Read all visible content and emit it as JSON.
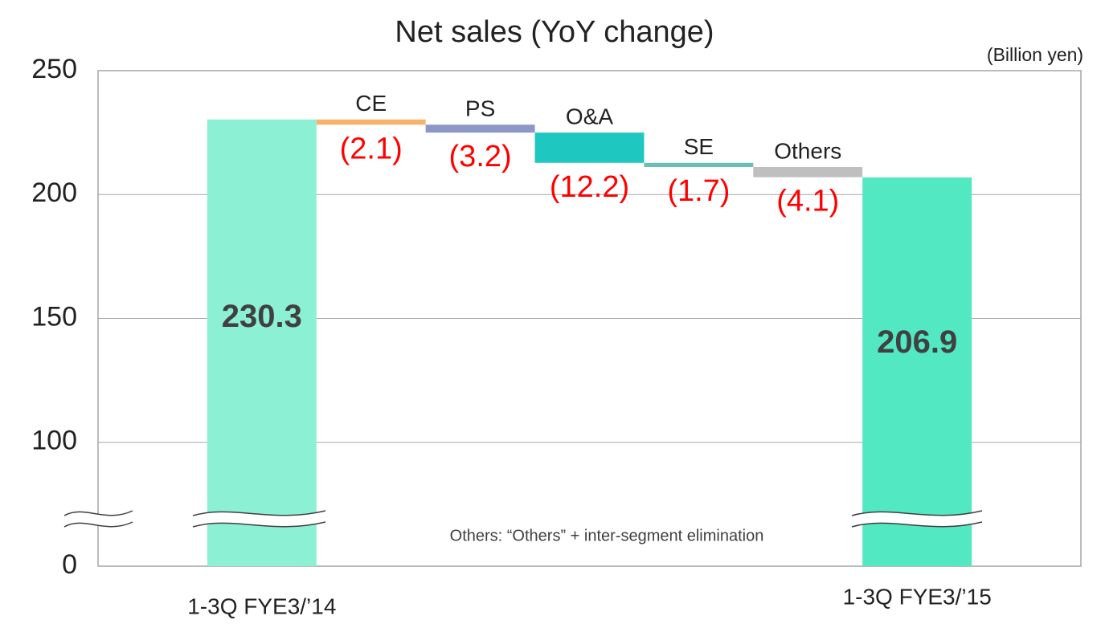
{
  "chart_data": {
    "type": "waterfall",
    "title": "Net sales (YoY change)",
    "unit_label": "(Billion yen)",
    "annotation": "Others: “Others” + inter-segment elimination",
    "categories": [
      "1-3Q FYE3/’14",
      "CE",
      "PS",
      "O&A",
      "SE",
      "Others",
      "1-3Q FYE3/’15"
    ],
    "values": [
      230.3,
      -2.1,
      -3.2,
      -12.2,
      -1.7,
      -4.1,
      206.9
    ],
    "value_labels": [
      "230.3",
      "(2.1)",
      "(3.2)",
      "(12.2)",
      "(1.7)",
      "(4.1)",
      "206.9"
    ],
    "colors": [
      "#8cf0d4",
      "#f5b26b",
      "#8c97c6",
      "#1ec8c0",
      "#6cbfb6",
      "#bfbfbf",
      "#52e8c2"
    ],
    "ylim": [
      0,
      250
    ],
    "yticks": [
      0,
      100,
      150,
      200,
      250
    ],
    "grid": true,
    "axis_break": true
  }
}
